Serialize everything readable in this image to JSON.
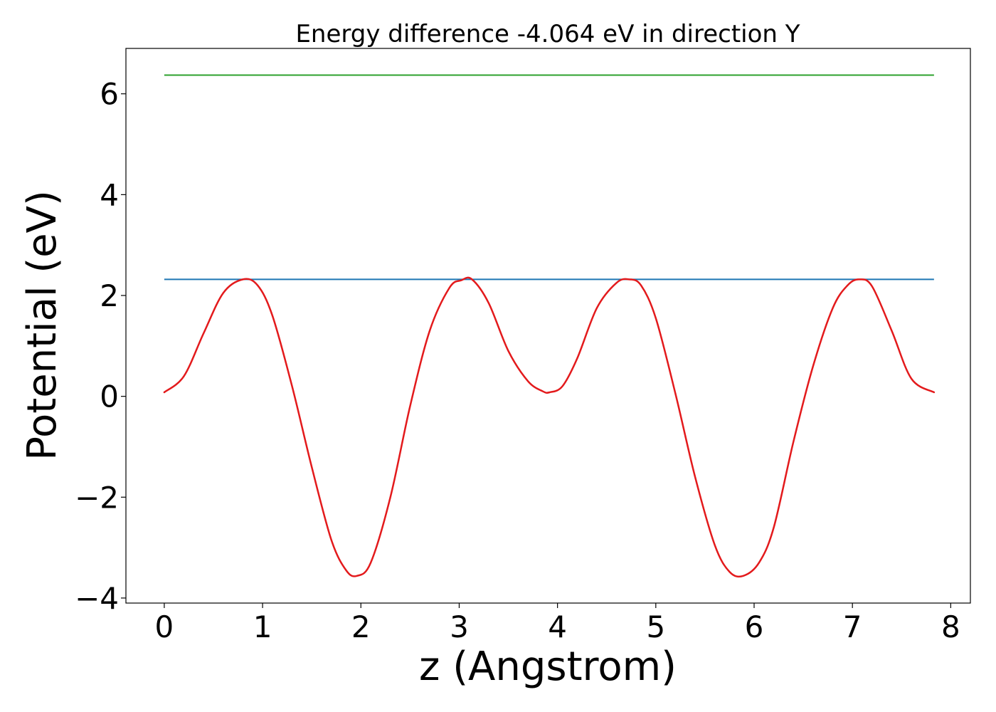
{
  "chart_data": {
    "type": "line",
    "title": "Energy difference -4.064 eV in direction Y",
    "xlabel": "z (Angstrom)",
    "ylabel": "Potential (eV)",
    "xlim": [
      -0.39,
      8.2
    ],
    "ylim": [
      -4.1,
      6.9
    ],
    "x_ticks": [
      0,
      1,
      2,
      3,
      4,
      5,
      6,
      7,
      8
    ],
    "x_tick_labels": [
      "0",
      "1",
      "2",
      "3",
      "4",
      "5",
      "6",
      "7",
      "8"
    ],
    "y_ticks": [
      -4,
      -2,
      0,
      2,
      4,
      6
    ],
    "y_tick_labels": [
      "−4",
      "−2",
      "0",
      "2",
      "4",
      "6"
    ],
    "grid": false,
    "legend": false,
    "series": [
      {
        "kind": "hline",
        "color": "#2ca02c",
        "x_range": [
          0,
          7.83
        ],
        "y": 6.37
      },
      {
        "kind": "hline",
        "color": "#1f77b4",
        "x_range": [
          0,
          7.83
        ],
        "y": 2.32
      },
      {
        "kind": "curve",
        "color": "#e31a1c",
        "x": [
          0,
          0.2,
          0.4,
          0.6,
          0.8,
          0.95,
          1.1,
          1.3,
          1.5,
          1.7,
          1.85,
          1.96,
          2.1,
          2.3,
          2.5,
          2.7,
          2.9,
          3.02,
          3.13,
          3.3,
          3.5,
          3.7,
          3.85,
          3.92,
          4.05,
          4.2,
          4.4,
          4.6,
          4.73,
          4.85,
          5.0,
          5.2,
          5.4,
          5.6,
          5.75,
          5.89,
          6.05,
          6.2,
          6.4,
          6.6,
          6.8,
          6.95,
          7.07,
          7.2,
          7.4,
          7.6,
          7.83
        ],
        "y": [
          0.08,
          0.4,
          1.25,
          2.05,
          2.32,
          2.2,
          1.6,
          0.2,
          -1.4,
          -2.85,
          -3.45,
          -3.56,
          -3.3,
          -2.0,
          -0.2,
          1.3,
          2.15,
          2.3,
          2.32,
          1.85,
          0.9,
          0.3,
          0.1,
          0.08,
          0.2,
          0.75,
          1.75,
          2.25,
          2.32,
          2.2,
          1.55,
          0.05,
          -1.6,
          -2.95,
          -3.48,
          -3.56,
          -3.3,
          -2.6,
          -0.9,
          0.6,
          1.75,
          2.2,
          2.32,
          2.18,
          1.3,
          0.35,
          0.08
        ]
      }
    ]
  }
}
